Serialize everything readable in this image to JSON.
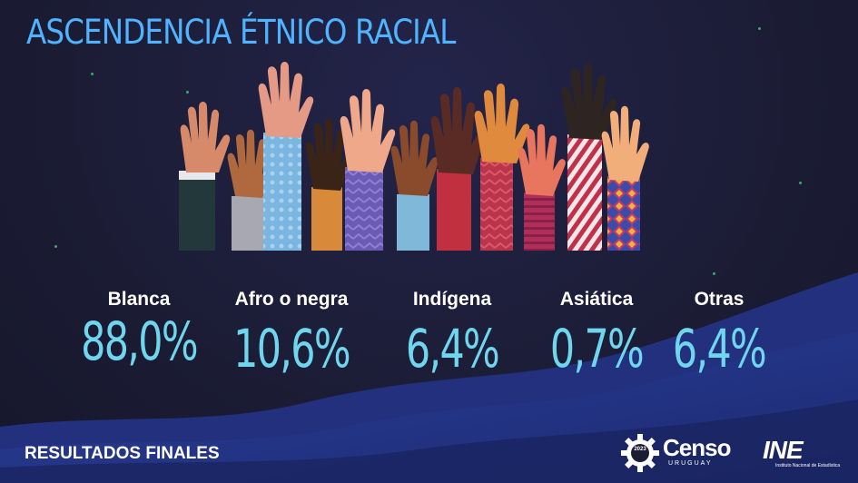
{
  "title": "ASCENDENCIA ÉTNICO RACIAL",
  "stats": [
    {
      "label": "Blanca",
      "value": "88,0%"
    },
    {
      "label": "Afro o negra",
      "value": "10,6%"
    },
    {
      "label": "Indígena",
      "value": "6,4%"
    },
    {
      "label": "Asiática",
      "value": "0,7%"
    },
    {
      "label": "Otras",
      "value": "6,4%"
    }
  ],
  "footer": "RESULTADOS FINALES",
  "logos": {
    "censo": {
      "text": "Censo",
      "sub": "URUGUAY",
      "year": "2023"
    },
    "ine": {
      "text": "INE",
      "sub": "Instituto Nacional de Estadística"
    }
  },
  "colors": {
    "background": "#1b1c34",
    "title": "#4fb3ff",
    "value": "#6fd6ee",
    "wave": "#2a3c8f"
  }
}
